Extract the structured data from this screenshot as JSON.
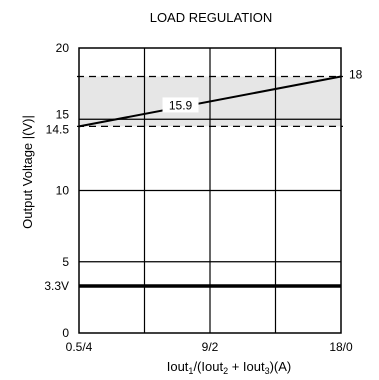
{
  "chart_data": {
    "type": "line",
    "title": "LOAD REGULATION",
    "ylabel": "Output Voltage |(V)|",
    "xlabel_parts": {
      "a": "Iout",
      "sub1": "1",
      "b": "/(Iout",
      "sub2": "2",
      "c": " + Iout",
      "sub3": "3",
      "d": ")(A)"
    },
    "x_categories": [
      "0.5/4",
      "",
      "9/2",
      "",
      "18/0"
    ],
    "x_tick_labels": [
      {
        "label": "0.5/4",
        "x": 0
      },
      {
        "label": "9/2",
        "x": 2
      },
      {
        "label": "18/0",
        "x": 4
      }
    ],
    "xlim": [
      0,
      4
    ],
    "ylim": [
      0,
      20
    ],
    "y_ticks": [
      {
        "label": "0",
        "value": 0
      },
      {
        "label": "3.3V",
        "value": 3.3
      },
      {
        "label": "5",
        "value": 5
      },
      {
        "label": "10",
        "value": 10
      },
      {
        "label": "14.5",
        "value": 14.5
      },
      {
        "label": "15",
        "value": 15
      },
      {
        "label": "20",
        "value": 20
      }
    ],
    "grid": true,
    "series": [
      {
        "x": [
          0,
          4
        ],
        "y": [
          14.5,
          18
        ],
        "color": "#000000",
        "width": 2
      },
      {
        "x": [
          0,
          4
        ],
        "y": [
          3.3,
          3.3
        ],
        "color": "#000000",
        "width": 3.5
      }
    ],
    "band": {
      "y": [
        14.5,
        18
      ],
      "fill": "#e6e6e6",
      "dashed_bounds": true
    },
    "annotations": [
      {
        "text": "15.9",
        "x": 1.55,
        "y": 15.9
      },
      {
        "text": "18",
        "x": 4,
        "y": 18
      }
    ]
  }
}
